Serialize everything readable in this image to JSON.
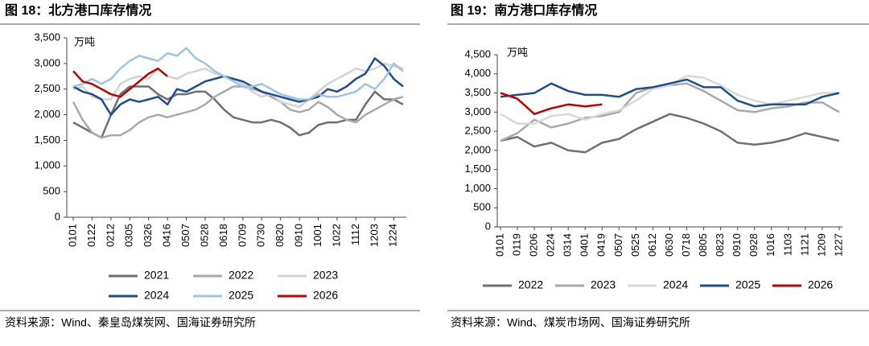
{
  "chart_data": [
    {
      "type": "line",
      "title": "图 18：北方港口库存情况",
      "y_unit": "万吨",
      "source": "资料来源：Wind、秦皇岛煤炭网、国海证券研究所",
      "categories": [
        "0101",
        null,
        "0122",
        null,
        "0212",
        null,
        "0305",
        null,
        "0326",
        null,
        "0416",
        null,
        "0507",
        null,
        "0528",
        null,
        "0618",
        null,
        "0709",
        null,
        "0730",
        null,
        "0820",
        null,
        "0910",
        null,
        "1001",
        null,
        "1022",
        null,
        "1112",
        null,
        "1203",
        null,
        "1224",
        null
      ],
      "ylim": [
        0,
        3500
      ],
      "yticks": [
        0,
        500,
        {
          "value": 1000,
          "label": "1,000"
        },
        {
          "value": 1500,
          "label": "1,500"
        },
        {
          "value": 2000,
          "label": "2,000"
        },
        {
          "value": 2500,
          "label": "2,500"
        },
        {
          "value": 3000,
          "label": "3,000"
        },
        {
          "value": 3500,
          "label": "3,500"
        }
      ],
      "legend": "bottom",
      "series": [
        {
          "name": "2021",
          "color": "#707070",
          "values": [
            1850,
            1750,
            1650,
            1550,
            2000,
            2400,
            2550,
            2550,
            2550,
            2400,
            2300,
            2400,
            2400,
            2450,
            2450,
            2300,
            2100,
            1950,
            1900,
            1850,
            1850,
            1900,
            1850,
            1750,
            1600,
            1650,
            1800,
            1850,
            1850,
            1900,
            1900,
            2200,
            2450,
            2300,
            2300,
            2200
          ]
        },
        {
          "name": "2022",
          "color": "#a9a9a9",
          "values": [
            2250,
            1900,
            1650,
            1550,
            1600,
            1600,
            1700,
            1850,
            1950,
            2000,
            1950,
            2000,
            2050,
            2100,
            2200,
            2350,
            2450,
            2550,
            2550,
            2500,
            2450,
            2350,
            2250,
            2100,
            2050,
            2100,
            2250,
            2150,
            2000,
            1900,
            1850,
            2000,
            2100,
            2200,
            2300,
            2350
          ]
        },
        {
          "name": "2023",
          "color": "#d3d3d3",
          "values": [
            2500,
            2550,
            2350,
            2300,
            2300,
            2600,
            2700,
            2750,
            2700,
            2900,
            2750,
            2700,
            2800,
            2850,
            2900,
            2800,
            2750,
            2700,
            2600,
            2450,
            2350,
            2400,
            2250,
            2200,
            2150,
            2300,
            2450,
            2600,
            2700,
            2800,
            2900,
            2850,
            2900,
            3000,
            2950,
            2900
          ]
        },
        {
          "name": "2024",
          "color": "#1f4e8c",
          "values": [
            2550,
            2450,
            2400,
            2300,
            2000,
            2200,
            2300,
            2250,
            2300,
            2350,
            2200,
            2500,
            2450,
            2550,
            2650,
            2700,
            2750,
            2700,
            2650,
            2550,
            2450,
            2400,
            2350,
            2300,
            2250,
            2300,
            2350,
            2500,
            2450,
            2550,
            2700,
            2800,
            3100,
            2950,
            2700,
            2550
          ]
        },
        {
          "name": "2025",
          "color": "#9dc3e6",
          "values": [
            2550,
            2600,
            2700,
            2600,
            2700,
            2900,
            3050,
            3150,
            3100,
            3050,
            3200,
            3150,
            3300,
            3100,
            3000,
            2850,
            2750,
            2650,
            2550,
            2550,
            2600,
            2500,
            2400,
            2350,
            2300,
            2300,
            2400,
            2350,
            2350,
            2400,
            2450,
            2600,
            2500,
            2700,
            3000,
            2850
          ]
        },
        {
          "name": "2026",
          "color": "#c00000",
          "values": [
            2850,
            2650,
            2600,
            2500,
            2400,
            2350,
            2500,
            2650,
            2800,
            2900,
            2750,
            null,
            null,
            null,
            null,
            null,
            null,
            null,
            null,
            null,
            null,
            null,
            null,
            null,
            null,
            null,
            null,
            null,
            null,
            null,
            null,
            null,
            null,
            null,
            null,
            null
          ]
        }
      ]
    },
    {
      "type": "line",
      "title": "图 19：南方港口库存情况",
      "y_unit": "万吨",
      "source": "资料来源：Wind、煤炭市场网、国海证券研究所",
      "categories": [
        "0101",
        "0119",
        "0206",
        "0224",
        "0314",
        "0401",
        "0419",
        "0507",
        "0525",
        "0612",
        "0630",
        "0718",
        "0805",
        "0823",
        "0910",
        "0928",
        "1016",
        "1103",
        "1121",
        "1209",
        "1227"
      ],
      "ylim": [
        0,
        4500
      ],
      "yticks": [
        0,
        500,
        {
          "value": 1000,
          "label": "1,000"
        },
        {
          "value": 1500,
          "label": "1,500"
        },
        {
          "value": 2000,
          "label": "2,000"
        },
        {
          "value": 2500,
          "label": "2,500"
        },
        {
          "value": 3000,
          "label": "3,000"
        },
        {
          "value": 3500,
          "label": "3,500"
        },
        {
          "value": 4000,
          "label": "4,000"
        },
        {
          "value": 4500,
          "label": "4,500"
        }
      ],
      "legend": "bottom",
      "series": [
        {
          "name": "2022",
          "color": "#707070",
          "values": [
            2250,
            2350,
            2100,
            2200,
            2000,
            1950,
            2200,
            2300,
            2550,
            2750,
            2950,
            2850,
            2700,
            2500,
            2200,
            2150,
            2200,
            2300,
            2450,
            2350,
            2250
          ]
        },
        {
          "name": "2023",
          "color": "#a9a9a9",
          "values": [
            2250,
            2450,
            2800,
            2600,
            2700,
            2850,
            2900,
            3000,
            3500,
            3650,
            3700,
            3750,
            3550,
            3300,
            3050,
            3000,
            3100,
            3150,
            3250,
            3250,
            3000
          ]
        },
        {
          "name": "2024",
          "color": "#d9d9d9",
          "values": [
            2950,
            2700,
            2700,
            2900,
            2950,
            2800,
            2950,
            3050,
            3300,
            3600,
            3700,
            3950,
            3900,
            3700,
            3450,
            3300,
            3200,
            3300,
            3400,
            3500,
            3500
          ]
        },
        {
          "name": "2025",
          "color": "#1f4e8c",
          "values": [
            3400,
            3450,
            3500,
            3750,
            3550,
            3450,
            3450,
            3400,
            3600,
            3650,
            3750,
            3850,
            3650,
            3650,
            3300,
            3150,
            3200,
            3200,
            3200,
            3400,
            3500
          ]
        },
        {
          "name": "2026",
          "color": "#c00000",
          "values": [
            3500,
            3350,
            2950,
            3100,
            3200,
            3150,
            3200,
            null,
            null,
            null,
            null,
            null,
            null,
            null,
            null,
            null,
            null,
            null,
            null,
            null,
            null
          ]
        }
      ]
    }
  ]
}
